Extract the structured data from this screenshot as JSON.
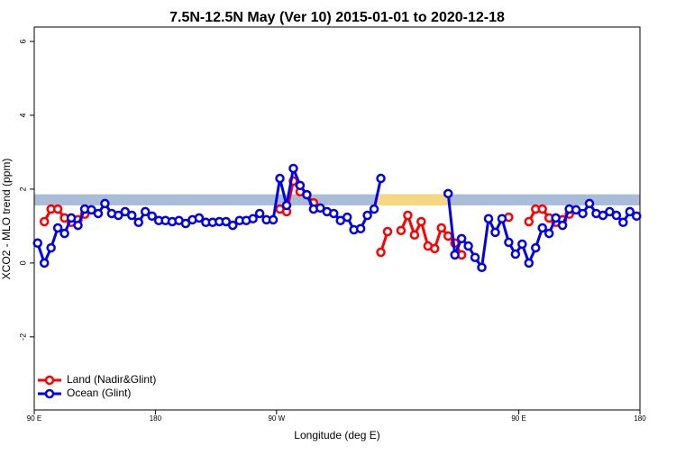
{
  "chart_data": {
    "type": "line",
    "title": "7.5N-12.5N May (Ver 10)   2015-01-01 to 2020-12-18",
    "x_label": "Longitude (deg E)",
    "y_label": "XCO2 - MLO trend (ppm)",
    "x": [
      92.5,
      97.5,
      102.5,
      107.5,
      112.5,
      117.5,
      122.5,
      127.5,
      132.5,
      137.5,
      142.5,
      147.5,
      152.5,
      157.5,
      162.5,
      167.5,
      172.5,
      177.5,
      182.5,
      187.5,
      192.5,
      197.5,
      202.5,
      207.5,
      212.5,
      217.5,
      222.5,
      227.5,
      232.5,
      237.5,
      242.5,
      247.5,
      252.5,
      257.5,
      262.5,
      267.5,
      272.5,
      277.5,
      282.5,
      287.5,
      292.5,
      297.5,
      302.5,
      307.5,
      312.5,
      317.5,
      322.5,
      327.5,
      332.5,
      337.5,
      342.5,
      347.5,
      352.5,
      357.5,
      362.5,
      367.5,
      372.5,
      377.5,
      382.5,
      387.5,
      392.5,
      397.5,
      402.5,
      407.5,
      412.5,
      417.5,
      422.5,
      427.5,
      432.5,
      437.5,
      442.5,
      447.5,
      452.5,
      457.5,
      462.5,
      467.5,
      472.5,
      477.5,
      482.5,
      487.5,
      492.5,
      497.5,
      502.5,
      507.5,
      512.5,
      517.5,
      522.5,
      527.5,
      532.5,
      537.5
    ],
    "series": [
      {
        "name": "Land (Nadir&Glint)",
        "color": "#ff0000",
        "values": [
          null,
          1.12,
          1.46,
          1.46,
          1.22,
          1.1,
          1.17,
          1.32,
          null,
          null,
          null,
          null,
          null,
          null,
          null,
          null,
          null,
          null,
          null,
          null,
          null,
          null,
          null,
          null,
          null,
          null,
          null,
          null,
          null,
          null,
          null,
          null,
          null,
          null,
          null,
          null,
          1.46,
          1.39,
          2.22,
          1.93,
          1.85,
          1.63,
          null,
          null,
          null,
          null,
          null,
          null,
          null,
          null,
          null,
          0.29,
          0.85,
          null,
          0.88,
          1.29,
          0.76,
          1.12,
          0.46,
          0.39,
          0.95,
          0.73,
          0.54,
          0.22,
          null,
          null,
          null,
          null,
          null,
          null,
          1.24,
          null,
          null,
          1.12,
          1.46,
          1.46,
          1.22,
          1.1,
          1.17,
          1.32,
          null,
          null,
          null,
          null,
          null,
          null,
          null,
          null,
          null,
          null
        ]
      },
      {
        "name": "Ocean (Glint)",
        "color": "#0000ee",
        "values": [
          0.54,
          0,
          0.41,
          0.95,
          0.8,
          1.22,
          1.02,
          1.46,
          1.44,
          1.34,
          1.61,
          1.34,
          1.29,
          1.39,
          1.29,
          1.1,
          1.39,
          1.27,
          1.15,
          1.15,
          1.12,
          1.15,
          1.07,
          1.17,
          1.22,
          1.1,
          1.1,
          1.12,
          1.12,
          1.02,
          1.15,
          1.15,
          1.2,
          1.34,
          1.17,
          1.17,
          2.29,
          1.56,
          2.56,
          2.1,
          1.85,
          1.46,
          1.49,
          1.39,
          1.34,
          1.15,
          1.24,
          0.9,
          0.93,
          1.29,
          1.46,
          2.29,
          null,
          null,
          null,
          null,
          null,
          null,
          null,
          null,
          null,
          1.88,
          0.22,
          0.66,
          0.46,
          0.15,
          -0.12,
          1.2,
          0.83,
          1.2,
          0.56,
          0.24,
          0.51,
          0,
          0.41,
          0.95,
          0.8,
          1.22,
          1.02,
          1.46,
          1.44,
          1.34,
          1.61,
          1.34,
          1.29,
          1.39,
          1.29,
          1.1,
          1.39,
          1.27
        ]
      }
    ],
    "xlim": [
      90,
      540
    ],
    "xticks": [
      {
        "value": 90,
        "label": "90 E"
      },
      180,
      {
        "value": 270,
        "label": "90 W"
      },
      {
        "value": 450,
        "label": "90 E"
      },
      180.0001
    ],
    "ylim": [
      -3.98,
      6.39
    ],
    "yticks": [
      -2,
      0,
      2,
      4,
      6
    ],
    "band": {
      "ylim": [
        1.56,
        1.86
      ],
      "color": "#a9bdd9"
    },
    "highlight_spans": {
      "spans": [
        [
          344,
          398
        ]
      ],
      "color": "#f5d77f"
    },
    "legend": "bottomleft"
  }
}
